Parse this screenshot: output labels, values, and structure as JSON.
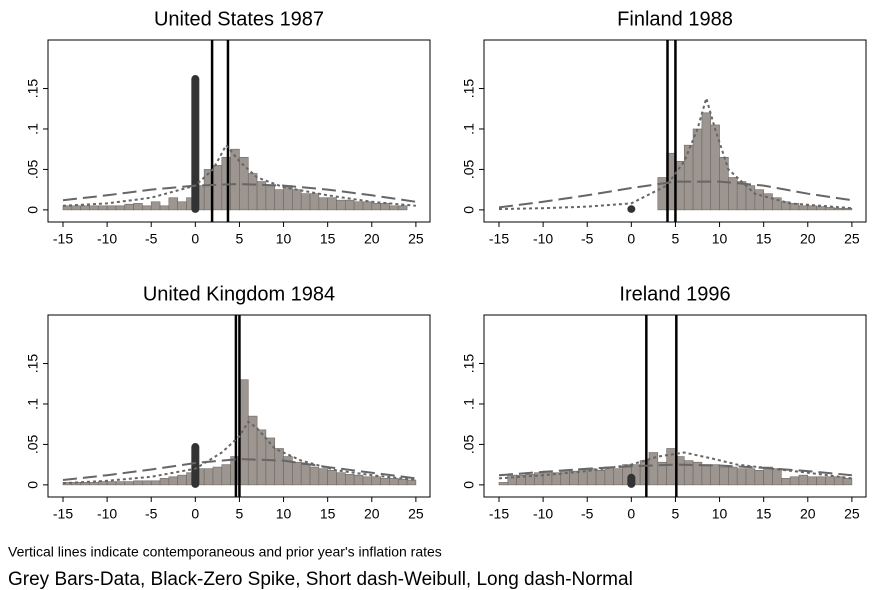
{
  "chart_data": [
    {
      "type": "histogram",
      "title": "United States 1987",
      "color": "#9c9590",
      "bins": [
        -15,
        -14,
        -13,
        -12,
        -11,
        -10,
        -9,
        -8,
        -7,
        -6,
        -5,
        -4,
        -3,
        -2,
        -1,
        0,
        1,
        2,
        3,
        4,
        5,
        6,
        7,
        8,
        9,
        10,
        11,
        12,
        13,
        14,
        15,
        16,
        17,
        18,
        19,
        20,
        21,
        22,
        23,
        24,
        25
      ],
      "values": [
        0.005,
        0.005,
        0.005,
        0.005,
        0.005,
        0.005,
        0.005,
        0.007,
        0.008,
        0.005,
        0.01,
        0.005,
        0.015,
        0.01,
        0.015,
        0.03,
        0.05,
        0.055,
        0.065,
        0.075,
        0.065,
        0.045,
        0.035,
        0.03,
        0.025,
        0.03,
        0.025,
        0.02,
        0.02,
        0.015,
        0.015,
        0.012,
        0.012,
        0.01,
        0.01,
        0.008,
        0.008,
        0.005,
        0.005,
        0
      ],
      "zero_spike": 0.163,
      "inflation_lines": [
        1.9,
        3.7
      ],
      "weibull": {
        "x": [
          -15,
          -10,
          -5,
          0,
          2,
          3.5,
          5,
          7,
          10,
          15,
          20,
          25
        ],
        "values": [
          0.005,
          0.008,
          0.015,
          0.03,
          0.05,
          0.08,
          0.06,
          0.04,
          0.028,
          0.018,
          0.01,
          0.005
        ]
      },
      "normal": {
        "x": [
          -15,
          -10,
          -5,
          0,
          5,
          10,
          15,
          20,
          25
        ],
        "values": [
          0.012,
          0.018,
          0.025,
          0.03,
          0.032,
          0.03,
          0.025,
          0.018,
          0.01
        ]
      },
      "xlim": [
        -16.7,
        26.6
      ],
      "ylim": [
        -0.015,
        0.21
      ],
      "xticks": [
        -15,
        -10,
        -5,
        0,
        5,
        10,
        15,
        20,
        25
      ],
      "yticks": [
        {
          "value": 0,
          "label": "0"
        },
        {
          "value": 0.05,
          "label": ".05"
        },
        {
          "value": 0.1,
          "label": ".1"
        },
        {
          "value": 0.15,
          "label": ".15"
        }
      ]
    },
    {
      "type": "histogram",
      "title": "Finland 1988",
      "color": "#9c9590",
      "bins": [
        -15,
        -14,
        -13,
        -12,
        -11,
        -10,
        -9,
        -8,
        -7,
        -6,
        -5,
        -4,
        -3,
        -2,
        -1,
        0,
        1,
        2,
        3,
        4,
        5,
        6,
        7,
        8,
        9,
        10,
        11,
        12,
        13,
        14,
        15,
        16,
        17,
        18,
        19,
        20,
        21,
        22,
        23,
        24,
        25
      ],
      "values": [
        0,
        0,
        0,
        0,
        0,
        0,
        0,
        0,
        0,
        0,
        0,
        0,
        0,
        0,
        0,
        0,
        0,
        0,
        0.04,
        0.07,
        0.06,
        0.08,
        0.1,
        0.12,
        0.105,
        0.065,
        0.04,
        0.035,
        0.03,
        0.025,
        0.02,
        0.015,
        0.01,
        0.008,
        0.005,
        0.005,
        0.004,
        0.003,
        0.002,
        0.002
      ],
      "zero_spike": 0.002,
      "inflation_lines": [
        4.1,
        5.0
      ],
      "weibull": {
        "x": [
          -15,
          -10,
          -5,
          0,
          4,
          6,
          7.5,
          8.5,
          9.5,
          11,
          14,
          18,
          25
        ],
        "values": [
          0.001,
          0.002,
          0.004,
          0.008,
          0.03,
          0.06,
          0.1,
          0.138,
          0.1,
          0.05,
          0.02,
          0.008,
          0.002
        ]
      },
      "normal": {
        "x": [
          -15,
          -10,
          -5,
          0,
          5,
          10,
          15,
          20,
          25
        ],
        "values": [
          0.003,
          0.01,
          0.018,
          0.027,
          0.035,
          0.035,
          0.03,
          0.02,
          0.012
        ]
      },
      "xlim": [
        -16.7,
        26.6
      ],
      "ylim": [
        -0.015,
        0.21
      ],
      "xticks": [
        -15,
        -10,
        -5,
        0,
        5,
        10,
        15,
        20,
        25
      ],
      "yticks": [
        {
          "value": 0,
          "label": "0"
        },
        {
          "value": 0.05,
          "label": ".05"
        },
        {
          "value": 0.1,
          "label": ".1"
        },
        {
          "value": 0.15,
          "label": ".15"
        }
      ]
    },
    {
      "type": "histogram",
      "title": "United Kingdom 1984",
      "color": "#9c9590",
      "bins": [
        -15,
        -14,
        -13,
        -12,
        -11,
        -10,
        -9,
        -8,
        -7,
        -6,
        -5,
        -4,
        -3,
        -2,
        -1,
        0,
        1,
        2,
        3,
        4,
        5,
        6,
        7,
        8,
        9,
        10,
        11,
        12,
        13,
        14,
        15,
        16,
        17,
        18,
        19,
        20,
        21,
        22,
        23,
        24,
        25
      ],
      "values": [
        0.003,
        0.003,
        0.003,
        0.003,
        0.004,
        0.004,
        0.004,
        0.004,
        0.005,
        0.005,
        0.005,
        0.008,
        0.01,
        0.012,
        0.015,
        0.02,
        0.02,
        0.022,
        0.025,
        0.035,
        0.13,
        0.085,
        0.068,
        0.058,
        0.045,
        0.035,
        0.028,
        0.025,
        0.022,
        0.02,
        0.018,
        0.015,
        0.013,
        0.012,
        0.01,
        0.01,
        0.008,
        0.008,
        0.007,
        0.006
      ],
      "zero_spike": 0.048,
      "inflation_lines": [
        4.6,
        5.0
      ],
      "weibull": {
        "x": [
          -15,
          -10,
          -5,
          0,
          3,
          5,
          6,
          7,
          9,
          12,
          16,
          20,
          25
        ],
        "values": [
          0.002,
          0.005,
          0.01,
          0.02,
          0.04,
          0.06,
          0.078,
          0.07,
          0.045,
          0.03,
          0.018,
          0.012,
          0.006
        ]
      },
      "normal": {
        "x": [
          -15,
          -10,
          -5,
          0,
          5,
          10,
          15,
          20,
          25
        ],
        "values": [
          0.006,
          0.012,
          0.019,
          0.027,
          0.032,
          0.03,
          0.022,
          0.015,
          0.008
        ]
      },
      "xlim": [
        -16.7,
        26.6
      ],
      "ylim": [
        -0.015,
        0.21
      ],
      "xticks": [
        -15,
        -10,
        -5,
        0,
        5,
        10,
        15,
        20,
        25
      ],
      "yticks": [
        {
          "value": 0,
          "label": "0"
        },
        {
          "value": 0.05,
          "label": ".05"
        },
        {
          "value": 0.1,
          "label": ".1"
        },
        {
          "value": 0.15,
          "label": ".15"
        }
      ]
    },
    {
      "type": "histogram",
      "title": "Ireland 1996",
      "color": "#9c9590",
      "bins": [
        -15,
        -14,
        -13,
        -12,
        -11,
        -10,
        -9,
        -8,
        -7,
        -6,
        -5,
        -4,
        -3,
        -2,
        -1,
        0,
        1,
        2,
        3,
        4,
        5,
        6,
        7,
        8,
        9,
        10,
        11,
        12,
        13,
        14,
        15,
        16,
        17,
        18,
        19,
        20,
        21,
        22,
        23,
        24,
        25
      ],
      "values": [
        0.003,
        0.012,
        0.012,
        0.013,
        0.015,
        0.017,
        0.015,
        0.018,
        0.017,
        0.02,
        0.02,
        0.018,
        0.022,
        0.02,
        0.025,
        0.025,
        0.03,
        0.04,
        0.028,
        0.045,
        0.035,
        0.03,
        0.028,
        0.025,
        0.025,
        0.022,
        0.022,
        0.02,
        0.02,
        0.018,
        0.022,
        0.02,
        0.008,
        0.01,
        0.012,
        0.01,
        0.01,
        0.01,
        0.01,
        0.008
      ],
      "zero_spike": 0.01,
      "inflation_lines": [
        1.7,
        5.1
      ],
      "weibull": {
        "x": [
          -15,
          -10,
          -5,
          0,
          3,
          6,
          9,
          12,
          16,
          20,
          25
        ],
        "values": [
          0.008,
          0.012,
          0.017,
          0.025,
          0.035,
          0.04,
          0.033,
          0.025,
          0.02,
          0.015,
          0.008
        ]
      },
      "normal": {
        "x": [
          -15,
          -10,
          -5,
          0,
          5,
          10,
          15,
          20,
          25
        ],
        "values": [
          0.012,
          0.016,
          0.02,
          0.023,
          0.025,
          0.024,
          0.021,
          0.017,
          0.012
        ]
      },
      "xlim": [
        -16.7,
        26.6
      ],
      "ylim": [
        -0.015,
        0.21
      ],
      "xticks": [
        -15,
        -10,
        -5,
        0,
        5,
        10,
        15,
        20,
        25
      ],
      "yticks": [
        {
          "value": 0,
          "label": "0"
        },
        {
          "value": 0.05,
          "label": ".05"
        },
        {
          "value": 0.1,
          "label": ".1"
        },
        {
          "value": 0.15,
          "label": ".15"
        }
      ]
    }
  ],
  "notes": [
    "Vertical lines indicate contemporaneous and prior year's inflation rates",
    "Grey Bars-Data, Black-Zero Spike, Short dash-Weibull, Long dash-Normal"
  ]
}
